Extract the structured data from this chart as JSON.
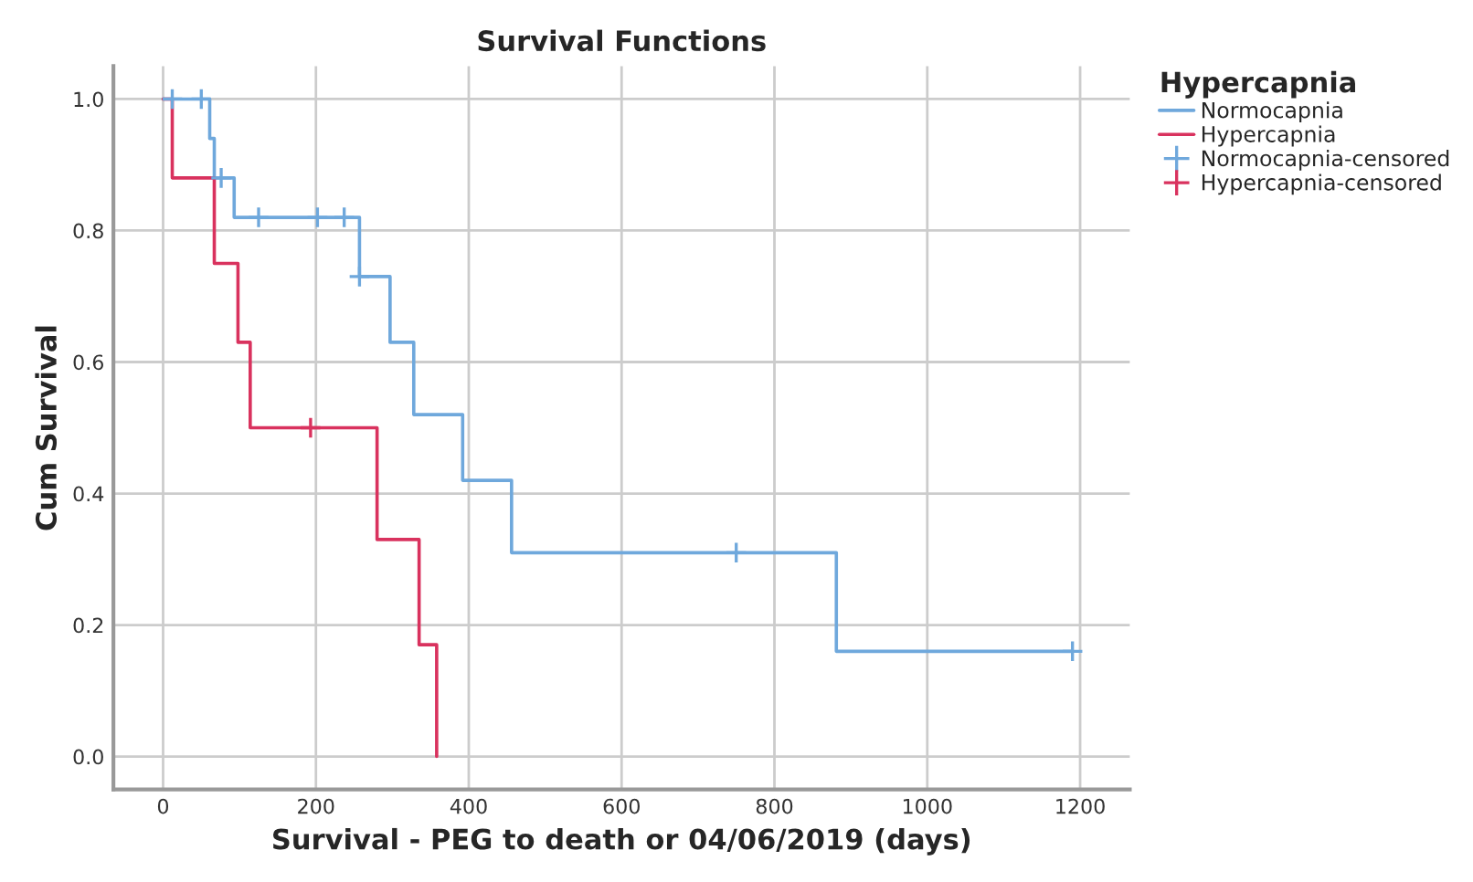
{
  "chart_data": {
    "type": "step",
    "title": "Survival Functions",
    "xlabel": "Survival - PEG to death or 04/06/2019 (days)",
    "ylabel": "Cum Survival",
    "legend_title": "Hypercapnia",
    "legend": "top right",
    "grid": true,
    "xlim": [
      -65,
      1265
    ],
    "ylim": [
      -0.05,
      1.05
    ],
    "xticks": [
      0,
      200,
      400,
      600,
      800,
      1000,
      1200
    ],
    "yticks": [
      {
        "value": 0,
        "label": "0.0"
      },
      {
        "value": 0.2,
        "label": "0.2"
      },
      {
        "value": 0.4,
        "label": "0.4"
      },
      {
        "value": 0.6,
        "label": "0.6"
      },
      {
        "value": 0.8,
        "label": "0.8"
      },
      {
        "value": 1,
        "label": "1.0"
      }
    ],
    "series": [
      {
        "name": "Normocapnia",
        "color": "#6fa8dc",
        "x": [
          0,
          61,
          67,
          93,
          257,
          297,
          328,
          392,
          456,
          881,
          1190
        ],
        "values": [
          1,
          0.94,
          0.88,
          0.82,
          0.73,
          0.63,
          0.52,
          0.42,
          0.31,
          0.16,
          0.16
        ]
      },
      {
        "name": "Hypercapnia",
        "color": "#d9325e",
        "x": [
          0,
          12,
          67,
          98,
          114,
          280,
          335,
          358
        ],
        "values": [
          1,
          0.88,
          0.75,
          0.63,
          0.5,
          0.33,
          0.17,
          0
        ]
      },
      {
        "name": "Normocapnia-censored",
        "type": "scatter",
        "marker": "cross",
        "color": "#6fa8dc",
        "x": [
          12,
          50,
          76,
          125,
          202,
          237,
          257,
          750,
          1190
        ],
        "values": [
          1,
          1,
          0.88,
          0.82,
          0.82,
          0.82,
          0.73,
          0.31,
          0.16
        ]
      },
      {
        "name": "Hypercapnia-censored",
        "type": "scatter",
        "marker": "cross",
        "color": "#d9325e",
        "x": [
          193
        ],
        "values": [
          0.5
        ]
      }
    ]
  }
}
